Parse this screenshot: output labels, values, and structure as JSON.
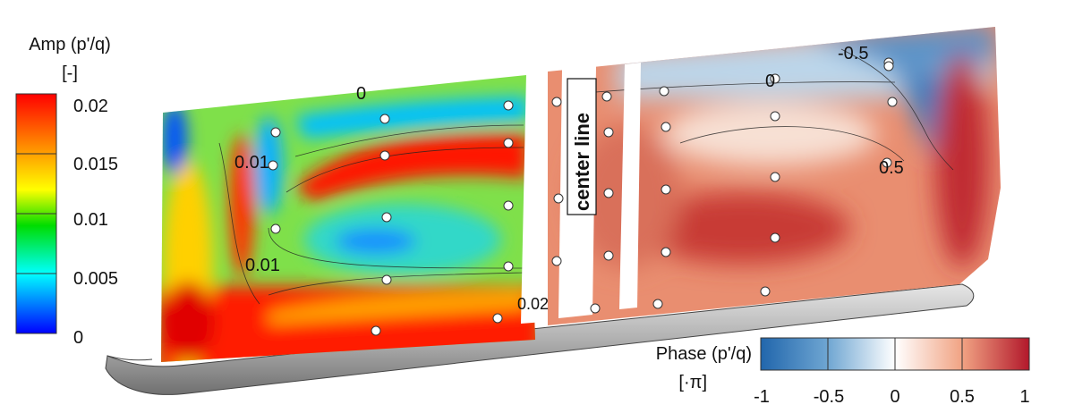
{
  "amp_colorbar": {
    "title_line1": "Amp (p'/q)",
    "title_line2": "[-]",
    "ticks": [
      "0.02",
      "0.015",
      "0.01",
      "0.005",
      "0"
    ],
    "colors": [
      "#ff0000",
      "#ff8000",
      "#ffff00",
      "#00dd00",
      "#00ffff",
      "#0000ff"
    ]
  },
  "phase_colorbar": {
    "title_line1": "Phase (p'/q)",
    "title_line2": "[·π]",
    "ticks": [
      "-1",
      "-0.5",
      "0",
      "0.5",
      "1"
    ],
    "colors": [
      "#2166ac",
      "#6fa6d2",
      "#ffffff",
      "#f1a383",
      "#b2182b"
    ]
  },
  "center_line_label": "center line",
  "amp_contour_labels": [
    "0",
    "0.01",
    "0.01",
    "0.02"
  ],
  "phase_contour_labels": [
    "-0.5",
    "0",
    "0.5"
  ]
}
